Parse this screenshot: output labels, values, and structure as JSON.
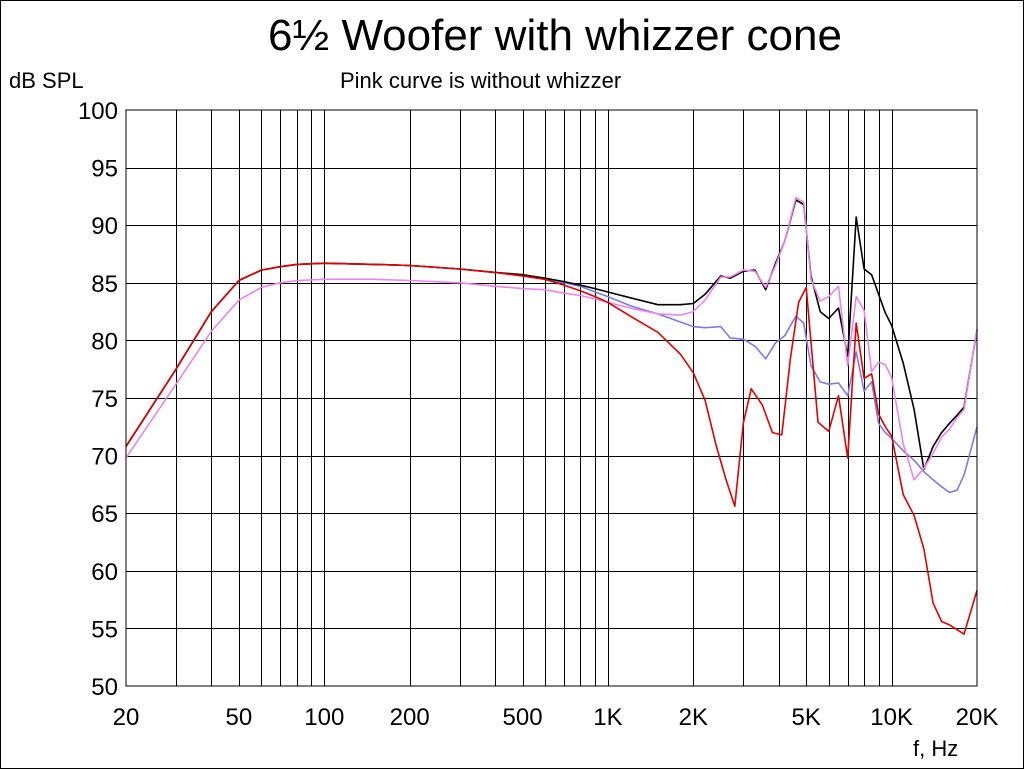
{
  "chart_data": {
    "type": "line",
    "title": "6½ Woofer with whizzer cone",
    "subtitle": "Pink curve is without whizzer",
    "ylabel": "dB SPL",
    "xlabel": "f, Hz",
    "xscale": "log",
    "xlim": [
      20,
      20000
    ],
    "ylim": [
      50,
      100
    ],
    "grid": true,
    "x_ticks": [
      {
        "value": 20,
        "label": "20"
      },
      {
        "value": 50,
        "label": "50"
      },
      {
        "value": 100,
        "label": "100"
      },
      {
        "value": 200,
        "label": "200"
      },
      {
        "value": 500,
        "label": "500"
      },
      {
        "value": 1000,
        "label": "1K"
      },
      {
        "value": 2000,
        "label": "2K"
      },
      {
        "value": 5000,
        "label": "5K"
      },
      {
        "value": 10000,
        "label": "10K"
      },
      {
        "value": 20000,
        "label": "20K"
      }
    ],
    "y_ticks": [
      {
        "value": 50,
        "label": "50"
      },
      {
        "value": 55,
        "label": "55"
      },
      {
        "value": 60,
        "label": "60"
      },
      {
        "value": 65,
        "label": "65"
      },
      {
        "value": 70,
        "label": "70"
      },
      {
        "value": 75,
        "label": "75"
      },
      {
        "value": 80,
        "label": "80"
      },
      {
        "value": 85,
        "label": "85"
      },
      {
        "value": 90,
        "label": "90"
      },
      {
        "value": 95,
        "label": "95"
      },
      {
        "value": 100,
        "label": "100"
      }
    ],
    "series": [
      {
        "color": "#7b7bec",
        "x": [
          20,
          30,
          40,
          50,
          60,
          70,
          80,
          100,
          150,
          200,
          300,
          400,
          500,
          600,
          700,
          800,
          900,
          1000,
          1200,
          1500,
          1800,
          2000,
          2200,
          2500,
          2700,
          3000,
          3300,
          3600,
          3900,
          4200,
          4600,
          4900,
          5200,
          5600,
          6000,
          6500,
          7000,
          7500,
          8000,
          8500,
          9000,
          9500,
          10000,
          11000,
          12000,
          13000,
          14000,
          15000,
          16000,
          17000,
          18000,
          20000
        ],
        "y": [
          70.8,
          77.5,
          82.5,
          85.2,
          86.1,
          86.4,
          86.6,
          86.7,
          86.6,
          86.5,
          86.2,
          85.9,
          85.6,
          85.3,
          85.0,
          84.7,
          84.2,
          83.8,
          83.0,
          82.3,
          81.6,
          81.2,
          81.1,
          81.2,
          80.2,
          80.1,
          79.5,
          78.4,
          79.8,
          80.4,
          82.1,
          81.5,
          77.8,
          76.4,
          76.2,
          76.3,
          75.2,
          79.0,
          75.6,
          76.4,
          72.8,
          72.0,
          71.5,
          70.4,
          69.6,
          68.6,
          67.9,
          67.3,
          66.8,
          67.0,
          68.3,
          72.5
        ]
      },
      {
        "color": "#000000",
        "x": [
          20,
          30,
          40,
          50,
          60,
          70,
          80,
          100,
          150,
          200,
          300,
          400,
          500,
          600,
          700,
          800,
          900,
          1000,
          1200,
          1500,
          1800,
          2000,
          2200,
          2500,
          2700,
          3000,
          3300,
          3600,
          3900,
          4200,
          4600,
          4900,
          5200,
          5600,
          6000,
          6500,
          7000,
          7500,
          8000,
          8500,
          9000,
          9500,
          10000,
          11000,
          12000,
          13000,
          14000,
          15000,
          16000,
          17000,
          18000,
          20000
        ],
        "y": [
          70.8,
          77.5,
          82.5,
          85.2,
          86.1,
          86.4,
          86.6,
          86.7,
          86.6,
          86.5,
          86.2,
          85.9,
          85.7,
          85.4,
          85.1,
          84.8,
          84.5,
          84.2,
          83.7,
          83.1,
          83.1,
          83.2,
          84.0,
          85.6,
          85.4,
          86.0,
          86.1,
          84.4,
          86.7,
          88.6,
          92.2,
          91.8,
          85.6,
          82.5,
          81.9,
          82.8,
          78.6,
          90.7,
          86.2,
          85.7,
          84.0,
          82.4,
          81.3,
          78.0,
          74.0,
          68.8,
          70.8,
          72.0,
          72.8,
          73.5,
          74.2,
          80.9
        ]
      },
      {
        "color": "#ee82ee",
        "x": [
          20,
          30,
          40,
          50,
          60,
          70,
          80,
          100,
          150,
          200,
          300,
          400,
          500,
          600,
          700,
          800,
          900,
          1000,
          1200,
          1500,
          1800,
          2000,
          2200,
          2500,
          2700,
          3000,
          3300,
          3600,
          3900,
          4200,
          4600,
          4900,
          5200,
          5600,
          6000,
          6500,
          7000,
          7500,
          8000,
          8500,
          9000,
          9500,
          10000,
          11000,
          12000,
          13000,
          14000,
          15000,
          16000,
          17000,
          18000,
          20000
        ],
        "y": [
          69.8,
          76.2,
          80.8,
          83.5,
          84.6,
          85.0,
          85.2,
          85.3,
          85.3,
          85.2,
          85.0,
          84.7,
          84.5,
          84.4,
          84.1,
          83.9,
          83.6,
          83.3,
          82.8,
          82.3,
          82.2,
          82.5,
          83.5,
          85.5,
          85.5,
          86.1,
          86.0,
          84.6,
          86.5,
          88.6,
          92.4,
          92.0,
          85.3,
          83.4,
          83.8,
          84.7,
          77.8,
          83.8,
          82.6,
          77.3,
          78.1,
          77.9,
          76.8,
          71.0,
          67.9,
          68.9,
          70.2,
          71.6,
          72.3,
          73.3,
          74.0,
          81.0
        ]
      },
      {
        "color": "#e30000",
        "x": [
          20,
          30,
          40,
          50,
          60,
          70,
          80,
          100,
          150,
          200,
          300,
          400,
          500,
          600,
          700,
          800,
          900,
          1000,
          1200,
          1500,
          1800,
          2000,
          2200,
          2400,
          2600,
          2800,
          3000,
          3200,
          3500,
          3800,
          4100,
          4400,
          4700,
          5000,
          5500,
          6000,
          6500,
          7000,
          7500,
          8000,
          8500,
          9000,
          9500,
          10000,
          11000,
          12000,
          13000,
          14000,
          15000,
          16000,
          17000,
          18000,
          20000
        ],
        "y": [
          70.8,
          77.5,
          82.5,
          85.2,
          86.1,
          86.4,
          86.6,
          86.7,
          86.6,
          86.5,
          86.2,
          85.9,
          85.6,
          85.3,
          84.8,
          84.3,
          83.8,
          83.3,
          82.1,
          80.7,
          78.8,
          77.2,
          74.8,
          71.0,
          68.0,
          65.6,
          72.8,
          75.8,
          74.4,
          72.0,
          71.8,
          78.5,
          83.3,
          84.6,
          72.9,
          72.1,
          75.2,
          69.8,
          81.5,
          76.7,
          77.1,
          73.6,
          72.5,
          71.7,
          66.6,
          64.8,
          61.9,
          57.2,
          55.6,
          55.3,
          54.9,
          54.5,
          58.3
        ]
      }
    ]
  }
}
